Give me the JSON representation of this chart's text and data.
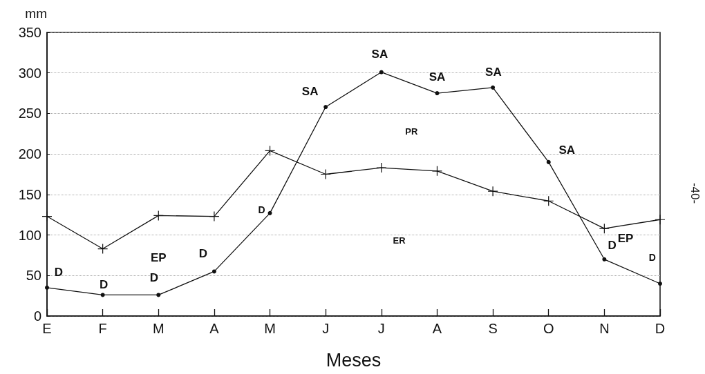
{
  "chart_data": {
    "type": "line",
    "xlabel": "Meses",
    "ylabel": "mm",
    "categories": [
      "E",
      "F",
      "M",
      "A",
      "M",
      "J",
      "J",
      "A",
      "S",
      "O",
      "N",
      "D"
    ],
    "series": [
      {
        "color": "#111111",
        "marker": "circle",
        "values": [
          35,
          26,
          26,
          55,
          127,
          258,
          301,
          275,
          282,
          190,
          70,
          40
        ]
      },
      {
        "color": "#111111",
        "marker": "cross",
        "values": [
          123,
          83,
          124,
          123,
          204,
          175,
          183,
          179,
          154,
          142,
          108,
          119
        ]
      }
    ],
    "ylim": [
      0,
      350
    ],
    "yticks": [
      0,
      50,
      100,
      150,
      200,
      250,
      300,
      350
    ],
    "grid": "y",
    "line_style": "solid",
    "annotations": [
      "D",
      "D",
      "EP",
      "D",
      "D",
      "D",
      "SA",
      "SA",
      "SA",
      "SA",
      "PR",
      "SA",
      "ER",
      "D",
      "EP",
      "D",
      "-40-"
    ]
  }
}
